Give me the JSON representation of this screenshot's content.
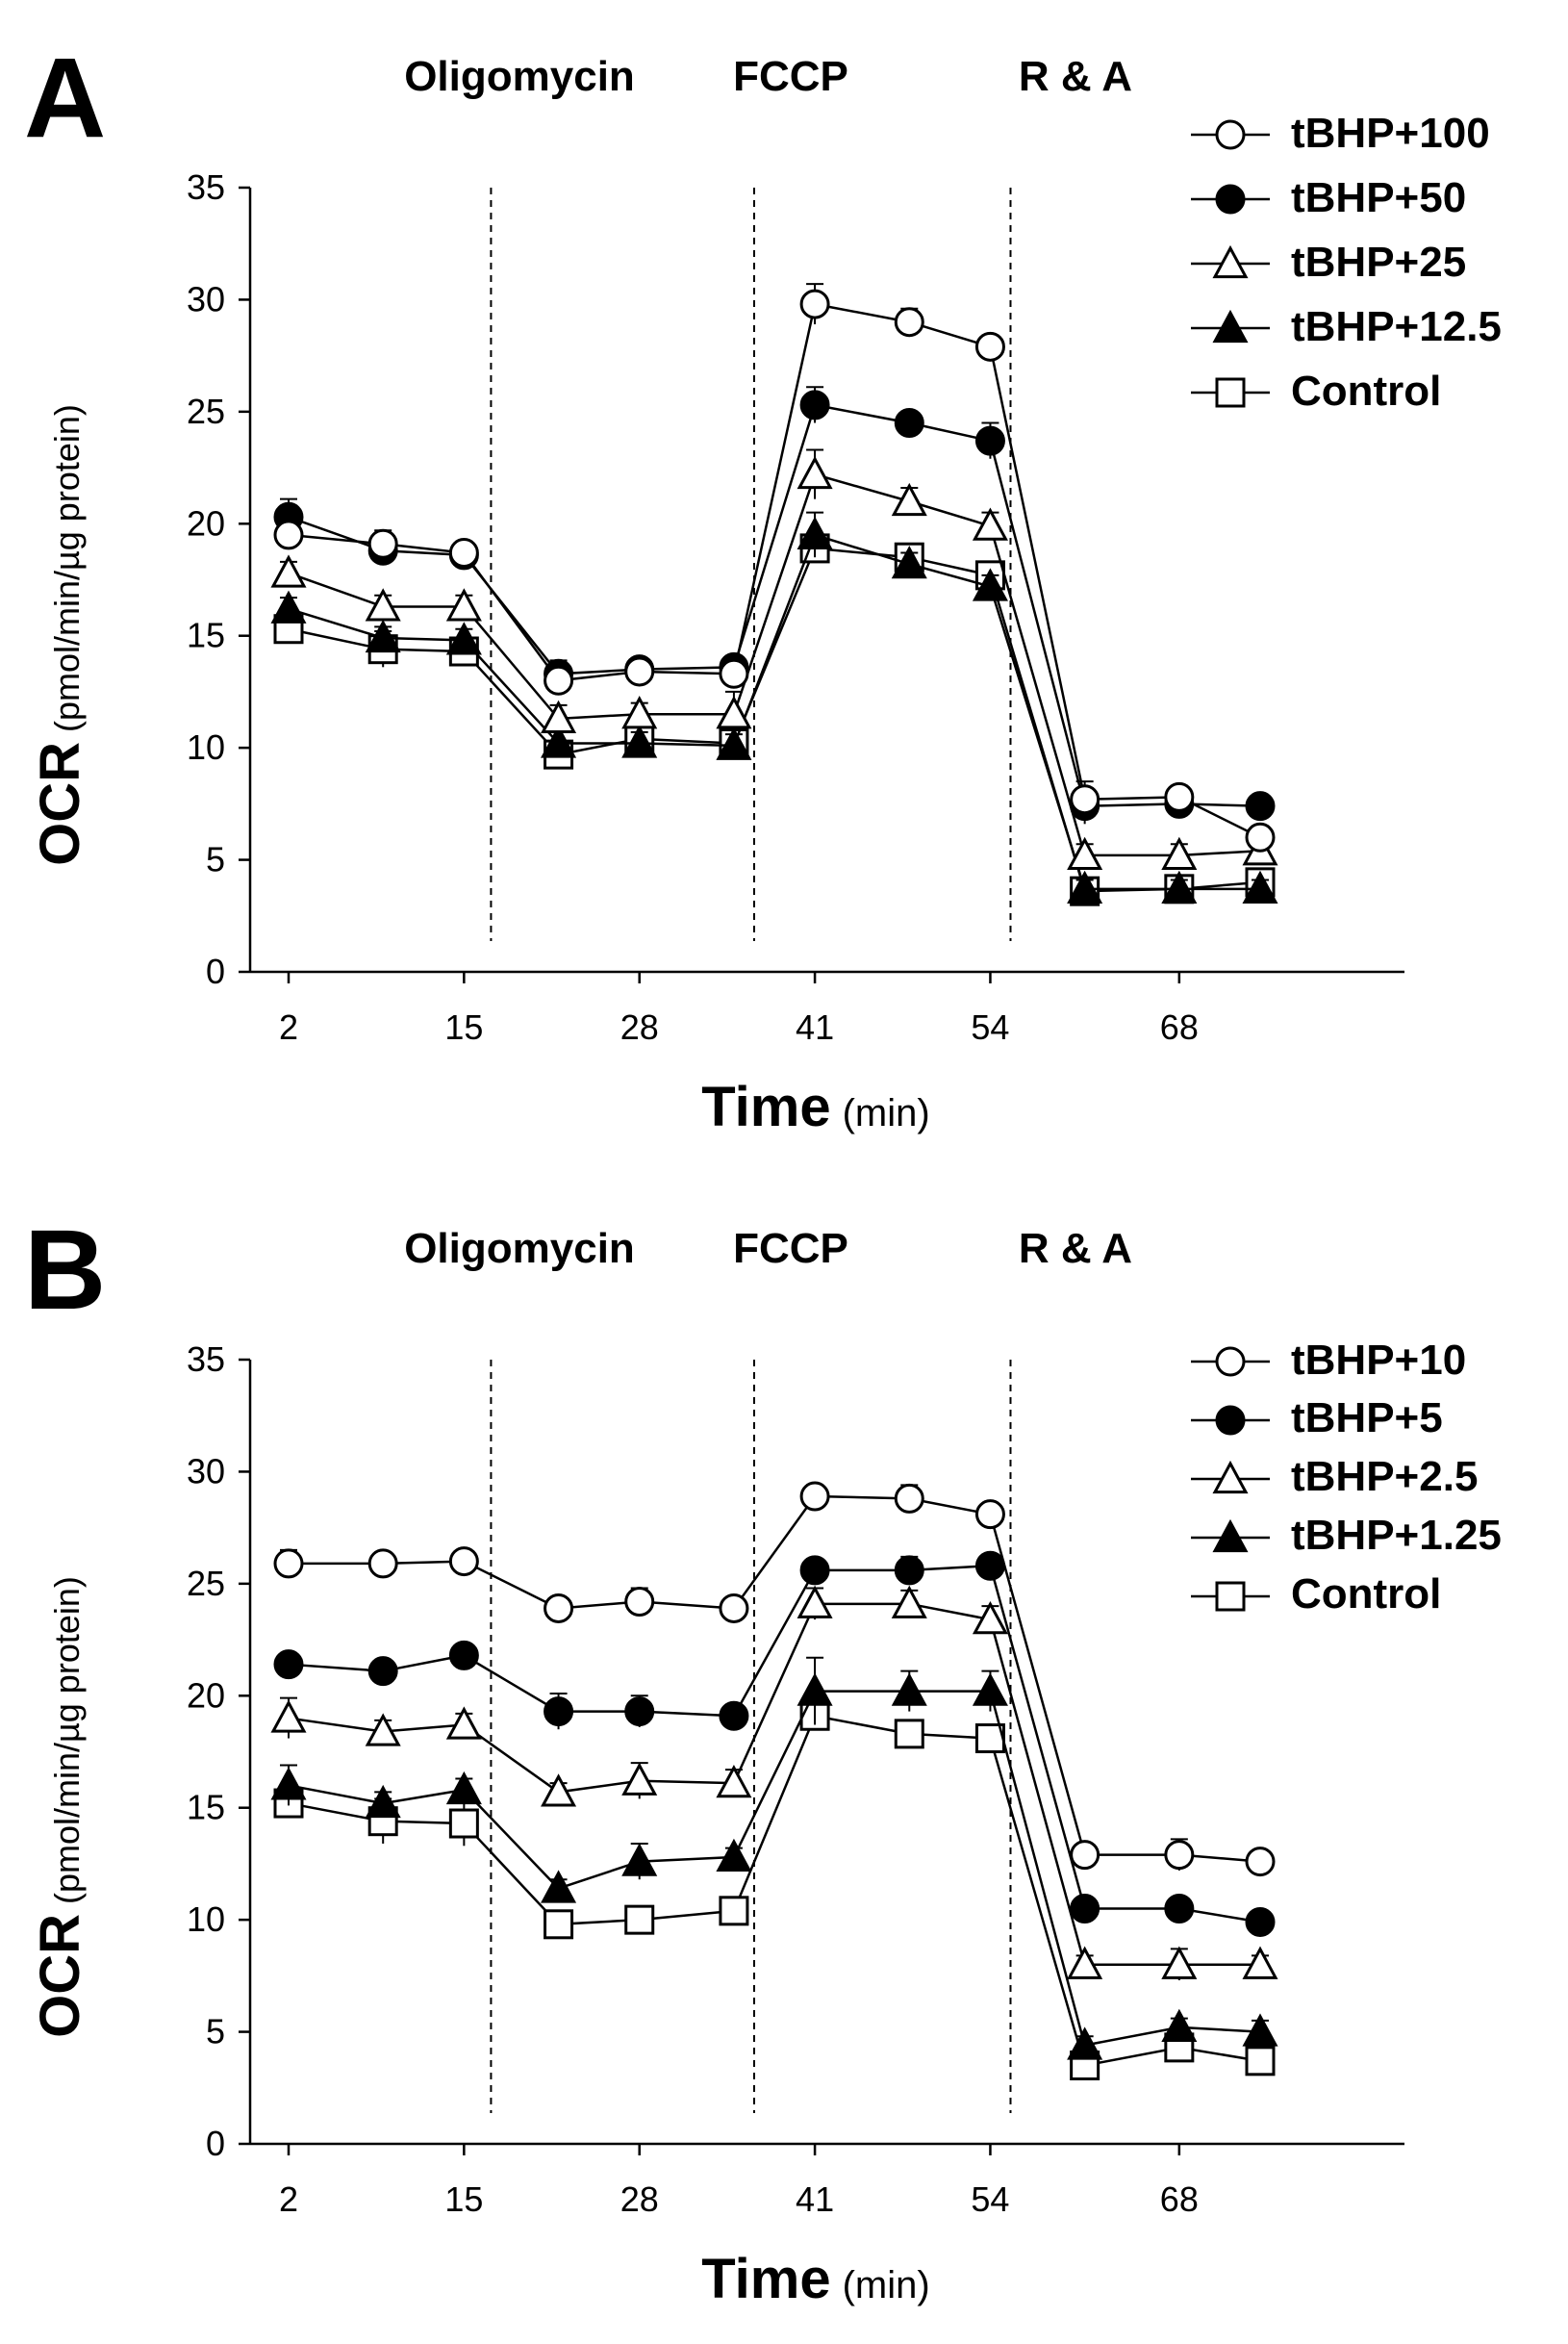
{
  "chart_data": [
    {
      "type": "line",
      "panel_label": "A",
      "treatments": [
        "Oligomycin",
        "FCCP",
        "R & A"
      ],
      "x": [
        2,
        9,
        15,
        22,
        28,
        35,
        41,
        48,
        54,
        61,
        68,
        74
      ],
      "x_ticks": [
        2,
        15,
        28,
        41,
        54,
        68
      ],
      "xlabel": "Time",
      "xlabel_unit": "(min)",
      "ylabel": "OCR",
      "ylabel_unit": "(pmol/min/µg protein)",
      "y_ticks": [
        0,
        5,
        10,
        15,
        20,
        25,
        30,
        35
      ],
      "ylim": [
        0,
        35
      ],
      "injection_times": [
        17,
        36.5,
        55.5
      ],
      "legend_position": "top-right",
      "series": [
        {
          "name": "tBHP+100",
          "marker": "open-circle",
          "values": [
            19.5,
            19.1,
            18.7,
            13.0,
            13.4,
            13.3,
            29.8,
            29.0,
            27.9,
            7.7,
            7.8,
            6.0
          ],
          "errors": [
            0.6,
            0.6,
            0.5,
            0.5,
            0.5,
            0.6,
            0.9,
            0.6,
            0.5,
            0.8,
            0.5,
            0.5
          ]
        },
        {
          "name": "tBHP+50",
          "marker": "filled-circle",
          "values": [
            20.3,
            18.8,
            18.6,
            13.3,
            13.5,
            13.6,
            25.3,
            24.5,
            23.7,
            7.4,
            7.5,
            7.4
          ],
          "errors": [
            0.8,
            0.5,
            0.5,
            0.6,
            0.5,
            0.5,
            0.8,
            0.5,
            0.8,
            0.8,
            0.5,
            0.4
          ]
        },
        {
          "name": "tBHP+25",
          "marker": "open-triangle",
          "values": [
            17.8,
            16.3,
            16.3,
            11.3,
            11.5,
            11.5,
            22.2,
            21.0,
            19.9,
            5.2,
            5.2,
            5.4
          ],
          "errors": [
            0.5,
            0.5,
            0.5,
            0.6,
            0.5,
            1.0,
            1.1,
            0.6,
            0.6,
            0.5,
            0.5,
            0.5
          ]
        },
        {
          "name": "tBHP+12.5",
          "marker": "filled-triangle",
          "values": [
            16.2,
            14.9,
            14.8,
            10.2,
            10.2,
            10.1,
            19.5,
            18.2,
            17.2,
            3.7,
            3.7,
            3.7
          ],
          "errors": [
            0.5,
            0.5,
            0.5,
            0.5,
            0.5,
            0.5,
            1.0,
            0.5,
            0.5,
            0.4,
            0.4,
            0.4
          ]
        },
        {
          "name": "Control",
          "marker": "open-square",
          "values": [
            15.3,
            14.4,
            14.3,
            9.7,
            10.4,
            10.2,
            18.9,
            18.5,
            17.7,
            3.6,
            3.7,
            4.0
          ],
          "errors": [
            0.5,
            0.8,
            0.5,
            0.5,
            0.6,
            0.6,
            0.6,
            0.5,
            0.6,
            0.4,
            0.4,
            0.4
          ]
        }
      ]
    },
    {
      "type": "line",
      "panel_label": "B",
      "treatments": [
        "Oligomycin",
        "FCCP",
        "R & A"
      ],
      "x": [
        2,
        9,
        15,
        22,
        28,
        35,
        41,
        48,
        54,
        61,
        68,
        74
      ],
      "x_ticks": [
        2,
        15,
        28,
        41,
        54,
        68
      ],
      "xlabel": "Time",
      "xlabel_unit": "(min)",
      "ylabel": "OCR",
      "ylabel_unit": "(pmol/min/µg protein)",
      "y_ticks": [
        0,
        5,
        10,
        15,
        20,
        25,
        30,
        35
      ],
      "ylim": [
        0,
        35
      ],
      "injection_times": [
        17,
        36.5,
        55.5
      ],
      "legend_position": "top-right",
      "series": [
        {
          "name": "tBHP+10",
          "marker": "open-circle",
          "values": [
            25.9,
            25.9,
            26.0,
            23.9,
            24.2,
            23.9,
            28.9,
            28.8,
            28.1,
            12.9,
            12.9,
            12.6
          ],
          "errors": [
            0.6,
            0.4,
            0.4,
            0.4,
            0.6,
            0.4,
            0.5,
            0.6,
            0.5,
            0.4,
            0.7,
            0.4
          ]
        },
        {
          "name": "tBHP+5",
          "marker": "filled-circle",
          "values": [
            21.4,
            21.1,
            21.8,
            19.3,
            19.3,
            19.1,
            25.6,
            25.6,
            25.8,
            10.5,
            10.5,
            9.9
          ],
          "errors": [
            0.4,
            0.4,
            0.4,
            0.8,
            0.7,
            0.4,
            0.5,
            0.6,
            0.5,
            0.4,
            0.4,
            0.4
          ]
        },
        {
          "name": "tBHP+2.5",
          "marker": "open-triangle",
          "values": [
            19.0,
            18.4,
            18.7,
            15.7,
            16.2,
            16.1,
            24.1,
            24.1,
            23.4,
            8.0,
            8.0,
            8.0
          ],
          "errors": [
            0.9,
            0.5,
            0.5,
            0.4,
            0.8,
            0.6,
            0.7,
            0.6,
            0.6,
            0.4,
            0.7,
            0.4
          ]
        },
        {
          "name": "tBHP+1.25",
          "marker": "filled-triangle",
          "values": [
            16.0,
            15.2,
            15.8,
            11.4,
            12.6,
            12.8,
            20.2,
            20.2,
            20.2,
            4.4,
            5.2,
            5.0
          ],
          "errors": [
            0.9,
            0.5,
            0.5,
            0.4,
            0.8,
            0.4,
            1.5,
            0.9,
            0.9,
            0.4,
            0.4,
            0.5
          ]
        },
        {
          "name": "Control",
          "marker": "open-square",
          "values": [
            15.2,
            14.4,
            14.3,
            9.8,
            10.0,
            10.4,
            19.1,
            18.3,
            18.1,
            3.5,
            4.3,
            3.7
          ],
          "errors": [
            0.6,
            1.0,
            1.0,
            0.4,
            0.4,
            0.6,
            0.4,
            0.4,
            0.4,
            0.4,
            0.4,
            0.4
          ]
        }
      ]
    }
  ]
}
